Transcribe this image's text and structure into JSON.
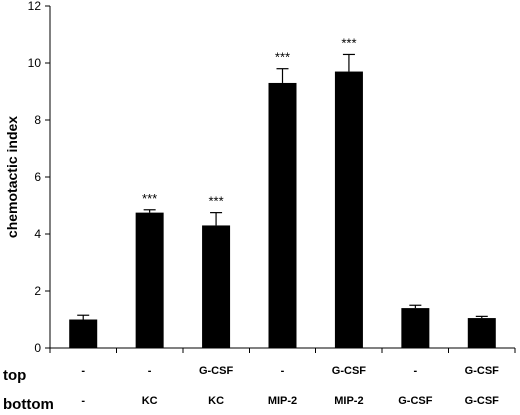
{
  "chart_data": {
    "type": "bar",
    "ylabel": "chemotactic index",
    "ylim": [
      0,
      12
    ],
    "yticks": [
      0,
      2,
      4,
      6,
      8,
      10,
      12
    ],
    "grid": false,
    "legend": "none",
    "bar_color": "#000000",
    "rows": {
      "top_label": "top",
      "bottom_label": "bottom"
    },
    "categories": [
      {
        "top": "-",
        "bottom": "-"
      },
      {
        "top": "-",
        "bottom": "KC"
      },
      {
        "top": "G-CSF",
        "bottom": "KC"
      },
      {
        "top": "-",
        "bottom": "MIP-2"
      },
      {
        "top": "G-CSF",
        "bottom": "MIP-2"
      },
      {
        "top": "-",
        "bottom": "G-CSF"
      },
      {
        "top": "G-CSF",
        "bottom": "G-CSF"
      }
    ],
    "values": [
      1.0,
      4.75,
      4.3,
      9.3,
      9.7,
      1.4,
      1.05
    ],
    "errors": [
      0.15,
      0.1,
      0.45,
      0.5,
      0.6,
      0.1,
      0.06
    ],
    "annotations": [
      "",
      "***",
      "***",
      "***",
      "***",
      "",
      ""
    ]
  }
}
